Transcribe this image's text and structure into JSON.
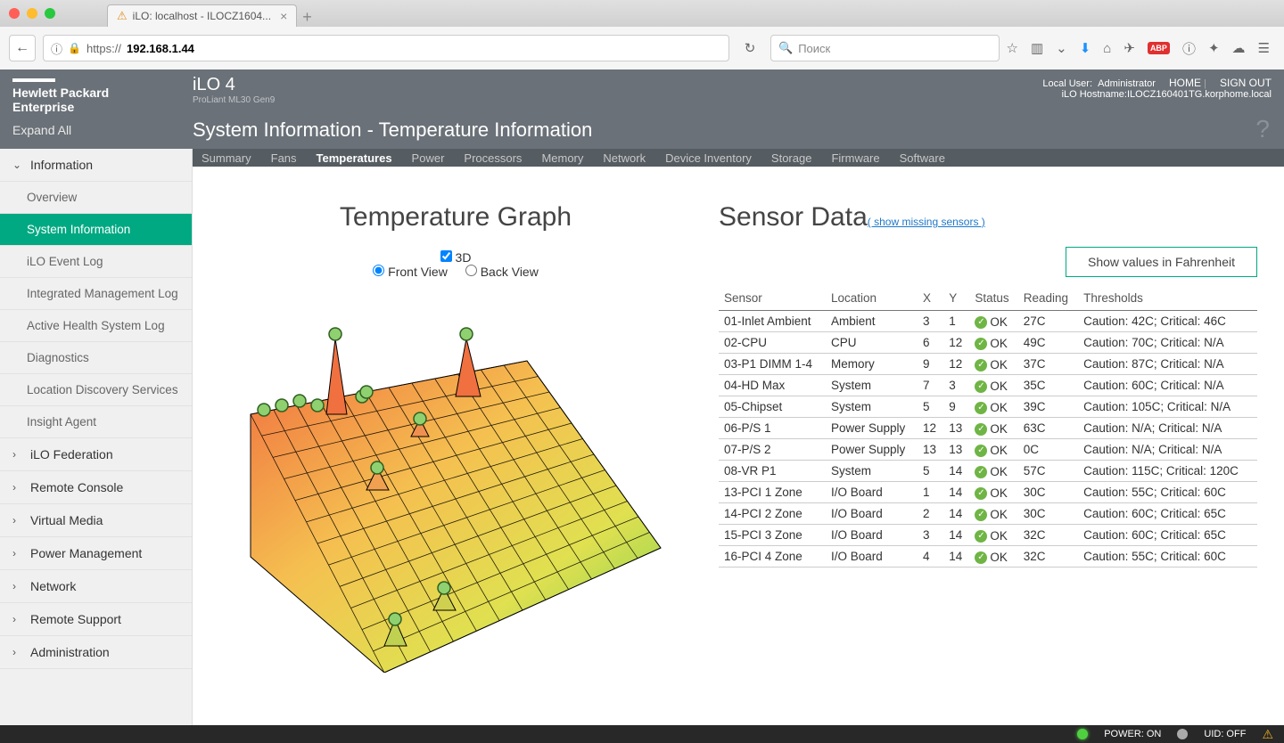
{
  "browser": {
    "tab_title": "iLO: localhost - ILOCZ1604...",
    "url_prefix": "https://",
    "url_host": "192.168.1.44",
    "search_placeholder": "Поиск"
  },
  "header": {
    "brand_line1": "Hewlett Packard",
    "brand_line2": "Enterprise",
    "product": "iLO 4",
    "product_sub": "ProLiant ML30 Gen9",
    "user_label": "Local User:",
    "user_name": "Administrator",
    "hostname_label": "iLO Hostname:",
    "hostname": "ILOCZ160401TG.korphome.local",
    "home": "HOME",
    "signout": "SIGN OUT",
    "expand_all": "Expand All",
    "page_title": "System Information - Temperature Information"
  },
  "tabs": [
    "Summary",
    "Fans",
    "Temperatures",
    "Power",
    "Processors",
    "Memory",
    "Network",
    "Device Inventory",
    "Storage",
    "Firmware",
    "Software"
  ],
  "tabs_active": 2,
  "sidebar": {
    "groups": [
      {
        "label": "Information",
        "expanded": true,
        "children": [
          {
            "label": "Overview"
          },
          {
            "label": "System Information",
            "active": true
          },
          {
            "label": "iLO Event Log"
          },
          {
            "label": "Integrated Management Log"
          },
          {
            "label": "Active Health System Log"
          },
          {
            "label": "Diagnostics"
          },
          {
            "label": "Location Discovery Services"
          },
          {
            "label": "Insight Agent"
          }
        ]
      },
      {
        "label": "iLO Federation"
      },
      {
        "label": "Remote Console"
      },
      {
        "label": "Virtual Media"
      },
      {
        "label": "Power Management"
      },
      {
        "label": "Network"
      },
      {
        "label": "Remote Support"
      },
      {
        "label": "Administration"
      }
    ]
  },
  "graph": {
    "title": "Temperature Graph",
    "checkbox_3d": "3D",
    "radio_front": "Front View",
    "radio_back": "Back View",
    "colors": {
      "low": "#6fd050",
      "mid": "#f5e050",
      "high": "#f07040"
    },
    "node_fill": "#8fd070",
    "node_stroke": "#306020",
    "grid_stroke": "#000000"
  },
  "sensors": {
    "title": "Sensor Data",
    "show_missing": "( show missing sensors )",
    "fahrenheit_btn": "Show values in Fahrenheit",
    "columns": [
      "Sensor",
      "Location",
      "X",
      "Y",
      "Status",
      "Reading",
      "Thresholds"
    ],
    "status_ok": "OK",
    "rows": [
      {
        "sensor": "01-Inlet Ambient",
        "location": "Ambient",
        "x": "3",
        "y": "1",
        "reading": "27C",
        "thresholds": "Caution: 42C; Critical: 46C"
      },
      {
        "sensor": "02-CPU",
        "location": "CPU",
        "x": "6",
        "y": "12",
        "reading": "49C",
        "thresholds": "Caution: 70C; Critical: N/A"
      },
      {
        "sensor": "03-P1 DIMM 1-4",
        "location": "Memory",
        "x": "9",
        "y": "12",
        "reading": "37C",
        "thresholds": "Caution: 87C; Critical: N/A"
      },
      {
        "sensor": "04-HD Max",
        "location": "System",
        "x": "7",
        "y": "3",
        "reading": "35C",
        "thresholds": "Caution: 60C; Critical: N/A"
      },
      {
        "sensor": "05-Chipset",
        "location": "System",
        "x": "5",
        "y": "9",
        "reading": "39C",
        "thresholds": "Caution: 105C; Critical: N/A"
      },
      {
        "sensor": "06-P/S 1",
        "location": "Power Supply",
        "x": "12",
        "y": "13",
        "reading": "63C",
        "thresholds": "Caution: N/A; Critical: N/A"
      },
      {
        "sensor": "07-P/S 2",
        "location": "Power Supply",
        "x": "13",
        "y": "13",
        "reading": "0C",
        "thresholds": "Caution: N/A; Critical: N/A"
      },
      {
        "sensor": "08-VR P1",
        "location": "System",
        "x": "5",
        "y": "14",
        "reading": "57C",
        "thresholds": "Caution: 115C; Critical: 120C"
      },
      {
        "sensor": "13-PCI 1 Zone",
        "location": "I/O Board",
        "x": "1",
        "y": "14",
        "reading": "30C",
        "thresholds": "Caution: 55C; Critical: 60C"
      },
      {
        "sensor": "14-PCI 2 Zone",
        "location": "I/O Board",
        "x": "2",
        "y": "14",
        "reading": "30C",
        "thresholds": "Caution: 60C; Critical: 65C"
      },
      {
        "sensor": "15-PCI 3 Zone",
        "location": "I/O Board",
        "x": "3",
        "y": "14",
        "reading": "32C",
        "thresholds": "Caution: 60C; Critical: 65C"
      },
      {
        "sensor": "16-PCI 4 Zone",
        "location": "I/O Board",
        "x": "4",
        "y": "14",
        "reading": "32C",
        "thresholds": "Caution: 55C; Critical: 60C"
      }
    ]
  },
  "footer": {
    "power": "POWER: ON",
    "uid": "UID: OFF"
  }
}
